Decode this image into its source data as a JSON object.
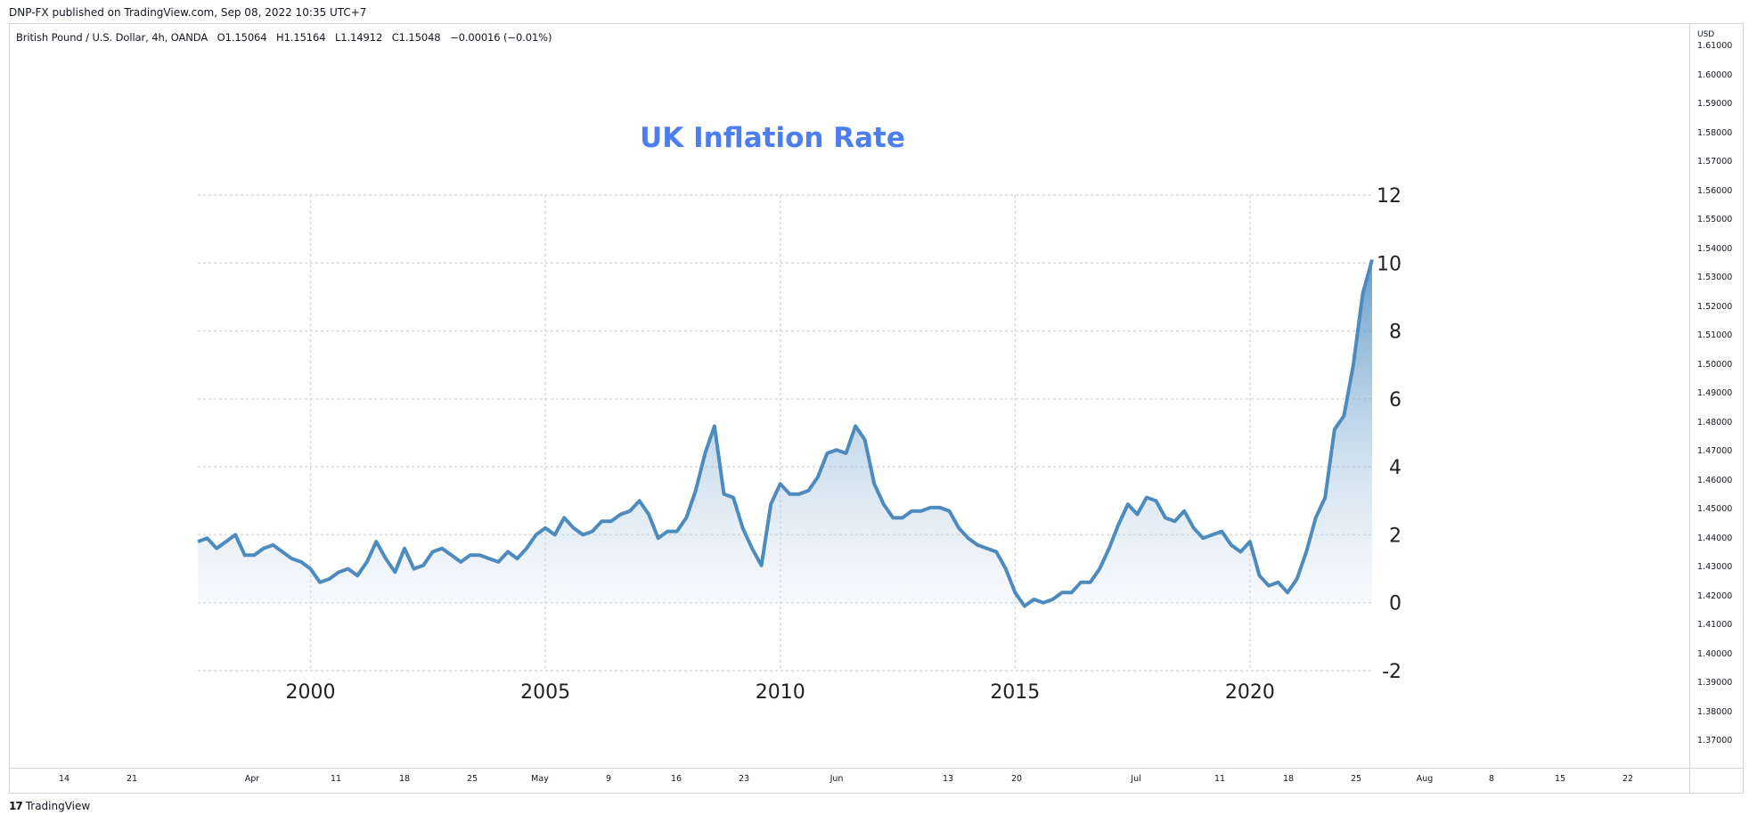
{
  "header": {
    "published": "DNP-FX published on TradingView.com, Sep 08, 2022 10:35 UTC+7"
  },
  "symbol": {
    "name": "British Pound / U.S. Dollar, 4h, OANDA",
    "open": "O1.15064",
    "high": "H1.15164",
    "low": "L1.14912",
    "close": "C1.15048",
    "change": "−0.00016 (−0.01%)"
  },
  "price_scale": {
    "currency": "USD",
    "labels": [
      "1.61000",
      "1.60000",
      "1.59000",
      "1.58000",
      "1.57000",
      "1.56000",
      "1.55000",
      "1.54000",
      "1.53000",
      "1.52000",
      "1.51000",
      "1.50000",
      "1.49000",
      "1.48000",
      "1.47000",
      "1.46000",
      "1.45000",
      "1.44000",
      "1.43000",
      "1.42000",
      "1.41000",
      "1.40000",
      "1.39000",
      "1.38000",
      "1.37000"
    ]
  },
  "time_scale": {
    "labels": [
      "14",
      "21",
      "Apr",
      "11",
      "18",
      "25",
      "May",
      "9",
      "16",
      "23",
      "Jun",
      "13",
      "20",
      "Jul",
      "11",
      "18",
      "25",
      "Aug",
      "8",
      "15",
      "22"
    ]
  },
  "footer": {
    "brand": "TradingView",
    "logo_mark": "17"
  },
  "colors": {
    "title": "#4c7ef0",
    "line": "#4d8bbf",
    "fill_top": "#4d8bbf",
    "grid": "#d9d9d9"
  },
  "chart_data": {
    "type": "area",
    "title": "UK Inflation Rate",
    "xlabel": "",
    "ylabel": "",
    "x_ticks": [
      "2000",
      "2005",
      "2010",
      "2015",
      "2020"
    ],
    "y_ticks": [
      12,
      10,
      8,
      6,
      4,
      2,
      0,
      -2
    ],
    "xlim": [
      1997.6,
      2022.6
    ],
    "ylim": [
      -2,
      12
    ],
    "grid": true,
    "x": [
      1997.6,
      1997.8,
      1998.0,
      1998.2,
      1998.4,
      1998.6,
      1998.8,
      1999.0,
      1999.2,
      1999.4,
      1999.6,
      1999.8,
      2000.0,
      2000.2,
      2000.4,
      2000.6,
      2000.8,
      2001.0,
      2001.2,
      2001.4,
      2001.6,
      2001.8,
      2002.0,
      2002.2,
      2002.4,
      2002.6,
      2002.8,
      2003.0,
      2003.2,
      2003.4,
      2003.6,
      2003.8,
      2004.0,
      2004.2,
      2004.4,
      2004.6,
      2004.8,
      2005.0,
      2005.2,
      2005.4,
      2005.6,
      2005.8,
      2006.0,
      2006.2,
      2006.4,
      2006.6,
      2006.8,
      2007.0,
      2007.2,
      2007.4,
      2007.6,
      2007.8,
      2008.0,
      2008.2,
      2008.4,
      2008.6,
      2008.8,
      2009.0,
      2009.2,
      2009.4,
      2009.6,
      2009.8,
      2010.0,
      2010.2,
      2010.4,
      2010.6,
      2010.8,
      2011.0,
      2011.2,
      2011.4,
      2011.6,
      2011.8,
      2012.0,
      2012.2,
      2012.4,
      2012.6,
      2012.8,
      2013.0,
      2013.2,
      2013.4,
      2013.6,
      2013.8,
      2014.0,
      2014.2,
      2014.4,
      2014.6,
      2014.8,
      2015.0,
      2015.2,
      2015.4,
      2015.6,
      2015.8,
      2016.0,
      2016.2,
      2016.4,
      2016.6,
      2016.8,
      2017.0,
      2017.2,
      2017.4,
      2017.6,
      2017.8,
      2018.0,
      2018.2,
      2018.4,
      2018.6,
      2018.8,
      2019.0,
      2019.2,
      2019.4,
      2019.6,
      2019.8,
      2020.0,
      2020.2,
      2020.4,
      2020.6,
      2020.8,
      2021.0,
      2021.2,
      2021.4,
      2021.6,
      2021.8,
      2022.0,
      2022.2,
      2022.4,
      2022.6
    ],
    "series": [
      {
        "values": [
          1.8,
          1.9,
          1.6,
          1.8,
          2.0,
          1.4,
          1.4,
          1.6,
          1.7,
          1.5,
          1.3,
          1.2,
          1.0,
          0.6,
          0.7,
          0.9,
          1.0,
          0.8,
          1.2,
          1.8,
          1.3,
          0.9,
          1.6,
          1.0,
          1.1,
          1.5,
          1.6,
          1.4,
          1.2,
          1.4,
          1.4,
          1.3,
          1.2,
          1.5,
          1.3,
          1.6,
          2.0,
          2.2,
          2.0,
          2.5,
          2.2,
          2.0,
          2.1,
          2.4,
          2.4,
          2.6,
          2.7,
          3.0,
          2.6,
          1.9,
          2.1,
          2.1,
          2.5,
          3.3,
          4.4,
          5.2,
          3.2,
          3.1,
          2.2,
          1.6,
          1.1,
          2.9,
          3.5,
          3.2,
          3.2,
          3.3,
          3.7,
          4.4,
          4.5,
          4.4,
          5.2,
          4.8,
          3.5,
          2.9,
          2.5,
          2.5,
          2.7,
          2.7,
          2.8,
          2.8,
          2.7,
          2.2,
          1.9,
          1.7,
          1.6,
          1.5,
          1.0,
          0.3,
          -0.1,
          0.1,
          0.0,
          0.1,
          0.3,
          0.3,
          0.6,
          0.6,
          1.0,
          1.6,
          2.3,
          2.9,
          2.6,
          3.1,
          3.0,
          2.5,
          2.4,
          2.7,
          2.2,
          1.9,
          2.0,
          2.1,
          1.7,
          1.5,
          1.8,
          0.8,
          0.5,
          0.6,
          0.3,
          0.7,
          1.5,
          2.5,
          3.1,
          5.1,
          5.5,
          7.0,
          9.1,
          10.1
        ]
      }
    ]
  }
}
